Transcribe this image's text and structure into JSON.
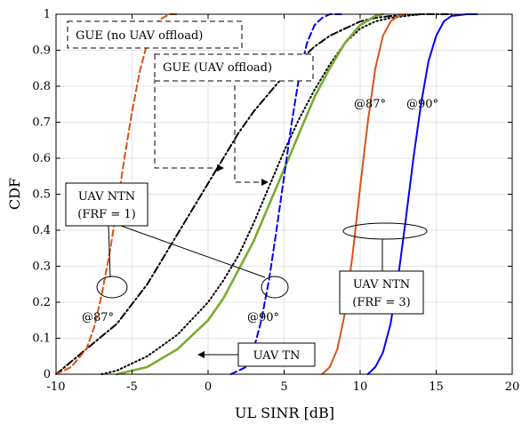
{
  "chart_data": {
    "type": "line",
    "title": "",
    "xlabel": "UL SINR [dB]",
    "ylabel": "CDF",
    "xlim": [
      -10,
      20
    ],
    "ylim": [
      0,
      1
    ],
    "grid": true,
    "xticks": [
      -10,
      -5,
      0,
      5,
      10,
      15,
      20
    ],
    "xtick_labels": [
      "-10",
      "-5",
      "0",
      "5",
      "10",
      "15",
      "20"
    ],
    "yticks": [
      0,
      0.1,
      0.2,
      0.3,
      0.4,
      0.5,
      0.6,
      0.7,
      0.8,
      0.9,
      1
    ],
    "ytick_labels": [
      "0",
      "0.1",
      "0.2",
      "0.3",
      "0.4",
      "0.5",
      "0.6",
      "0.7",
      "0.8",
      "0.9",
      "1"
    ],
    "series": [
      {
        "key": "gue_no_offload",
        "color": "#000000",
        "dash": "dashdot",
        "x": [
          -10,
          -8,
          -6,
          -4,
          -2,
          0,
          1,
          2,
          3,
          4,
          5,
          6,
          7,
          8,
          9,
          10,
          11,
          12,
          14,
          16
        ],
        "y": [
          0,
          0.07,
          0.14,
          0.25,
          0.39,
          0.53,
          0.6,
          0.67,
          0.73,
          0.78,
          0.83,
          0.87,
          0.91,
          0.94,
          0.96,
          0.98,
          0.99,
          0.995,
          1,
          1
        ]
      },
      {
        "key": "gue_offload",
        "color": "#000000",
        "dash": "dotted",
        "x": [
          -7,
          -6,
          -4,
          -2,
          0,
          1,
          2,
          3,
          4,
          5,
          6,
          7,
          8,
          9,
          10,
          11,
          12,
          13,
          14
        ],
        "y": [
          0,
          0.01,
          0.05,
          0.11,
          0.2,
          0.26,
          0.33,
          0.42,
          0.52,
          0.62,
          0.71,
          0.79,
          0.86,
          0.92,
          0.96,
          0.98,
          0.99,
          0.995,
          1
        ]
      },
      {
        "key": "uav_tn",
        "color": "#77ac30",
        "dash": "solid",
        "x": [
          -6,
          -4,
          -2,
          0,
          1,
          2,
          3,
          4,
          5,
          6,
          7,
          8,
          9,
          10,
          11,
          11.5
        ],
        "y": [
          0,
          0.02,
          0.07,
          0.15,
          0.21,
          0.29,
          0.37,
          0.47,
          0.57,
          0.67,
          0.77,
          0.85,
          0.92,
          0.97,
          0.995,
          1
        ]
      },
      {
        "key": "ntn_frf1_87",
        "color": "#d95319",
        "dash": "dashed",
        "x": [
          -10,
          -9,
          -8,
          -7.5,
          -7,
          -6.5,
          -6,
          -5.5,
          -5,
          -4.5,
          -4,
          -3.5,
          -3,
          -2.5,
          -2
        ],
        "y": [
          0,
          0.02,
          0.07,
          0.13,
          0.22,
          0.33,
          0.46,
          0.6,
          0.73,
          0.84,
          0.92,
          0.97,
          0.99,
          1,
          1
        ]
      },
      {
        "key": "ntn_frf1_90",
        "color": "#0000ff",
        "dash": "dashed",
        "x": [
          1.5,
          2.5,
          3,
          3.5,
          4,
          4.5,
          5,
          5.5,
          6,
          6.5,
          7,
          7.5,
          8,
          9
        ],
        "y": [
          0,
          0.02,
          0.07,
          0.15,
          0.26,
          0.4,
          0.55,
          0.7,
          0.83,
          0.92,
          0.97,
          0.99,
          1,
          1
        ]
      },
      {
        "key": "ntn_frf3_87",
        "color": "#d95319",
        "dash": "solid",
        "x": [
          7.5,
          8,
          8.5,
          9,
          9.5,
          10,
          10.5,
          11,
          11.5,
          12,
          12.5,
          13
        ],
        "y": [
          0,
          0.02,
          0.07,
          0.17,
          0.33,
          0.52,
          0.7,
          0.85,
          0.94,
          0.98,
          0.995,
          1
        ]
      },
      {
        "key": "ntn_frf3_90",
        "color": "#0000ff",
        "dash": "solid",
        "x": [
          10.5,
          11,
          11.5,
          12,
          12.5,
          13,
          13.5,
          14,
          14.5,
          15,
          15.5,
          16,
          17,
          17.7
        ],
        "y": [
          0,
          0.02,
          0.06,
          0.14,
          0.27,
          0.43,
          0.6,
          0.75,
          0.87,
          0.94,
          0.98,
          0.995,
          1,
          1
        ]
      }
    ],
    "annotations": [
      {
        "key": "gue_no_offload",
        "text": "GUE (no UAV offload)"
      },
      {
        "key": "gue_offload",
        "text": "GUE (UAV offload)"
      },
      {
        "key": "uav_tn",
        "text": "UAV TN"
      },
      {
        "key": "ntn_frf1_line1",
        "text": "UAV NTN"
      },
      {
        "key": "ntn_frf1_line2",
        "text": "(FRF = 1)"
      },
      {
        "key": "ntn_frf3_line1",
        "text": "UAV NTN"
      },
      {
        "key": "ntn_frf3_line2",
        "text": "(FRF = 3)"
      },
      {
        "key": "frf1_87",
        "text": "@87°"
      },
      {
        "key": "frf1_90",
        "text": "@90°"
      },
      {
        "key": "frf3_87",
        "text": "@87°"
      },
      {
        "key": "frf3_90",
        "text": "@90°"
      }
    ]
  }
}
